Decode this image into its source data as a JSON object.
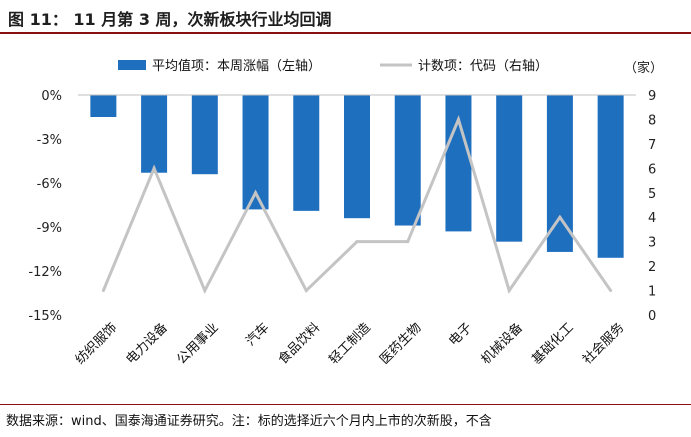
{
  "title": "图 11：  11 月第 3 周，次新板块行业均回调",
  "footnote": "数据来源：wind、国泰海通证券研究。注：标的选择近六个月内上市的次新股，不含",
  "colors": {
    "bar": "#1f6fbf",
    "line": "#c4c4c4",
    "title_rule": "#8b0f0f"
  },
  "chart_data": {
    "type": "bar+line",
    "categories": [
      "纺织服饰",
      "电力设备",
      "公用事业",
      "汽车",
      "食品饮料",
      "轻工制造",
      "医药生物",
      "电子",
      "机械设备",
      "基础化工",
      "社会服务"
    ],
    "series": [
      {
        "name": "平均值项：本周涨幅（左轴）",
        "type": "bar",
        "axis": "left",
        "values": [
          -1.5,
          -5.3,
          -5.4,
          -7.8,
          -7.9,
          -8.4,
          -8.9,
          -9.3,
          -10.0,
          -10.7,
          -11.1
        ]
      },
      {
        "name": "计数项：代码（右轴）",
        "type": "line",
        "axis": "right",
        "values": [
          1,
          6,
          1,
          5,
          1,
          3,
          3,
          8,
          1,
          4,
          1
        ]
      }
    ],
    "left_axis": {
      "min": -15,
      "max": 0,
      "ticks": [
        0,
        -3,
        -6,
        -9,
        -12,
        -15
      ],
      "tick_labels": [
        "0%",
        "-3%",
        "-6%",
        "-9%",
        "-12%",
        "-15%"
      ]
    },
    "right_axis": {
      "min": 0,
      "max": 9,
      "ticks": [
        0,
        1,
        2,
        3,
        4,
        5,
        6,
        7,
        8,
        9
      ],
      "unit_label": "（家）"
    },
    "legend_position": "top"
  }
}
